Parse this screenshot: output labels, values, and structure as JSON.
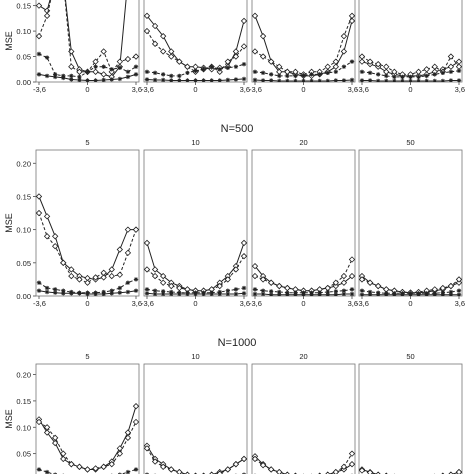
{
  "ylabel": "MSE",
  "y_ticks": [
    "0.00",
    "0.05",
    "0.10",
    "0.15",
    "0.20"
  ],
  "x_ticks": [
    "-3,6",
    "0",
    "3,6"
  ],
  "chart_data": [
    {
      "type": "line",
      "title": "",
      "ylim": [
        0,
        0.22
      ],
      "xlim": [
        -3.6,
        3.6
      ],
      "facet_labels": [
        "",
        "",
        "",
        ""
      ],
      "x": [
        -3.6,
        -3.0,
        -2.4,
        -1.8,
        -1.2,
        -0.6,
        0.0,
        0.6,
        1.2,
        1.8,
        2.4,
        3.0,
        3.6
      ],
      "panels": [
        {
          "solid_diamond": [
            0.15,
            0.14,
            0.2,
            0.2,
            0.06,
            0.025,
            0.02,
            0.02,
            0.015,
            0.01,
            0.03,
            0.2,
            0.2
          ],
          "dashed_diamond": [
            0.09,
            0.13,
            0.2,
            0.2,
            0.03,
            0.02,
            0.02,
            0.04,
            0.06,
            0.02,
            0.04,
            0.045,
            0.05
          ],
          "dashed_star": [
            0.055,
            0.048,
            0.015,
            0.012,
            0.012,
            0.01,
            0.02,
            0.03,
            0.03,
            0.025,
            0.028,
            0.02,
            0.03
          ],
          "solid_star": [
            0.015,
            0.012,
            0.01,
            0.008,
            0.005,
            0.004,
            0.003,
            0.003,
            0.004,
            0.005,
            0.006,
            0.01,
            0.015
          ]
        },
        {
          "solid_diamond": [
            0.13,
            0.11,
            0.09,
            0.06,
            0.04,
            0.03,
            0.03,
            0.028,
            0.025,
            0.028,
            0.03,
            0.06,
            0.12
          ],
          "dashed_diamond": [
            0.1,
            0.075,
            0.06,
            0.05,
            0.04,
            0.03,
            0.02,
            0.025,
            0.03,
            0.02,
            0.04,
            0.05,
            0.07
          ],
          "dashed_star": [
            0.02,
            0.018,
            0.015,
            0.012,
            0.012,
            0.018,
            0.022,
            0.025,
            0.03,
            0.025,
            0.028,
            0.03,
            0.035
          ],
          "solid_star": [
            0.005,
            0.004,
            0.004,
            0.003,
            0.003,
            0.003,
            0.003,
            0.003,
            0.003,
            0.003,
            0.004,
            0.005,
            0.006
          ]
        },
        {
          "solid_diamond": [
            0.13,
            0.09,
            0.04,
            0.02,
            0.02,
            0.015,
            0.012,
            0.012,
            0.015,
            0.02,
            0.03,
            0.06,
            0.12
          ],
          "dashed_diamond": [
            0.06,
            0.05,
            0.04,
            0.03,
            0.02,
            0.02,
            0.015,
            0.02,
            0.02,
            0.03,
            0.04,
            0.09,
            0.13
          ],
          "dashed_star": [
            0.02,
            0.018,
            0.015,
            0.012,
            0.012,
            0.012,
            0.013,
            0.015,
            0.015,
            0.018,
            0.02,
            0.03,
            0.04
          ],
          "solid_star": [
            0.004,
            0.003,
            0.003,
            0.002,
            0.002,
            0.002,
            0.002,
            0.002,
            0.002,
            0.002,
            0.003,
            0.003,
            0.004
          ]
        },
        {
          "solid_diamond": [
            0.04,
            0.035,
            0.03,
            0.02,
            0.015,
            0.012,
            0.012,
            0.012,
            0.015,
            0.02,
            0.025,
            0.03,
            0.04
          ],
          "dashed_diamond": [
            0.05,
            0.04,
            0.035,
            0.03,
            0.02,
            0.015,
            0.015,
            0.02,
            0.025,
            0.03,
            0.02,
            0.05,
            0.03
          ],
          "dashed_star": [
            0.02,
            0.018,
            0.015,
            0.012,
            0.01,
            0.01,
            0.01,
            0.01,
            0.012,
            0.015,
            0.018,
            0.02,
            0.022
          ],
          "solid_star": [
            0.003,
            0.003,
            0.002,
            0.002,
            0.002,
            0.002,
            0.002,
            0.002,
            0.002,
            0.002,
            0.002,
            0.003,
            0.003
          ]
        }
      ]
    },
    {
      "type": "line",
      "title": "N=500",
      "ylim": [
        0,
        0.22
      ],
      "xlim": [
        -3.6,
        3.6
      ],
      "facet_labels": [
        "5",
        "10",
        "20",
        "50"
      ],
      "x": [
        -3.6,
        -3.0,
        -2.4,
        -1.8,
        -1.2,
        -0.6,
        0.0,
        0.6,
        1.2,
        1.8,
        2.4,
        3.0,
        3.6
      ],
      "panels": [
        {
          "solid_diamond": [
            0.15,
            0.12,
            0.09,
            0.05,
            0.04,
            0.03,
            0.027,
            0.025,
            0.028,
            0.04,
            0.07,
            0.1,
            0.1
          ],
          "dashed_diamond": [
            0.125,
            0.09,
            0.075,
            0.05,
            0.03,
            0.025,
            0.02,
            0.028,
            0.035,
            0.03,
            0.032,
            0.065,
            0.1
          ],
          "dashed_star": [
            0.02,
            0.012,
            0.01,
            0.008,
            0.006,
            0.005,
            0.005,
            0.005,
            0.006,
            0.008,
            0.012,
            0.02,
            0.025
          ],
          "solid_star": [
            0.008,
            0.006,
            0.005,
            0.004,
            0.004,
            0.004,
            0.003,
            0.003,
            0.003,
            0.004,
            0.005,
            0.006,
            0.008
          ]
        },
        {
          "solid_diamond": [
            0.08,
            0.04,
            0.03,
            0.02,
            0.015,
            0.01,
            0.008,
            0.008,
            0.01,
            0.02,
            0.03,
            0.045,
            0.08
          ],
          "dashed_diamond": [
            0.04,
            0.03,
            0.02,
            0.015,
            0.012,
            0.01,
            0.008,
            0.008,
            0.01,
            0.015,
            0.025,
            0.04,
            0.06
          ],
          "dashed_star": [
            0.01,
            0.008,
            0.007,
            0.006,
            0.005,
            0.005,
            0.005,
            0.005,
            0.005,
            0.006,
            0.008,
            0.01,
            0.012
          ],
          "solid_star": [
            0.004,
            0.003,
            0.003,
            0.003,
            0.003,
            0.003,
            0.003,
            0.003,
            0.003,
            0.003,
            0.003,
            0.003,
            0.004
          ]
        },
        {
          "solid_diamond": [
            0.045,
            0.03,
            0.02,
            0.015,
            0.012,
            0.01,
            0.008,
            0.008,
            0.01,
            0.012,
            0.015,
            0.02,
            0.03
          ],
          "dashed_diamond": [
            0.03,
            0.025,
            0.02,
            0.015,
            0.012,
            0.01,
            0.008,
            0.008,
            0.01,
            0.012,
            0.02,
            0.03,
            0.055
          ],
          "dashed_star": [
            0.01,
            0.008,
            0.007,
            0.006,
            0.005,
            0.005,
            0.005,
            0.005,
            0.005,
            0.006,
            0.007,
            0.008,
            0.01
          ],
          "solid_star": [
            0.003,
            0.003,
            0.002,
            0.002,
            0.002,
            0.002,
            0.002,
            0.002,
            0.002,
            0.002,
            0.002,
            0.003,
            0.003
          ]
        },
        {
          "solid_diamond": [
            0.03,
            0.02,
            0.015,
            0.01,
            0.008,
            0.006,
            0.005,
            0.005,
            0.006,
            0.008,
            0.01,
            0.015,
            0.02
          ],
          "dashed_diamond": [
            0.025,
            0.02,
            0.015,
            0.01,
            0.008,
            0.006,
            0.005,
            0.006,
            0.008,
            0.01,
            0.012,
            0.015,
            0.025
          ],
          "dashed_star": [
            0.008,
            0.006,
            0.005,
            0.004,
            0.004,
            0.004,
            0.004,
            0.004,
            0.004,
            0.004,
            0.005,
            0.006,
            0.008
          ],
          "solid_star": [
            0.002,
            0.002,
            0.002,
            0.002,
            0.002,
            0.002,
            0.002,
            0.002,
            0.002,
            0.002,
            0.002,
            0.002,
            0.002
          ]
        }
      ]
    },
    {
      "type": "line",
      "title": "N=1000",
      "ylim": [
        0,
        0.22
      ],
      "xlim": [
        -3.6,
        3.6
      ],
      "facet_labels": [
        "5",
        "10",
        "20",
        "50"
      ],
      "x": [
        -3.6,
        -3.0,
        -2.4,
        -1.8,
        -1.2,
        -0.6,
        0.0,
        0.6,
        1.2,
        1.8,
        2.4,
        3.0,
        3.6
      ],
      "panels": [
        {
          "solid_diamond": [
            0.115,
            0.09,
            0.07,
            0.04,
            0.03,
            0.025,
            0.02,
            0.02,
            0.025,
            0.035,
            0.06,
            0.09,
            0.14
          ],
          "dashed_diamond": [
            0.11,
            0.1,
            0.08,
            0.05,
            0.03,
            0.025,
            0.02,
            0.022,
            0.025,
            0.03,
            0.05,
            0.08,
            0.11
          ],
          "dashed_star": [
            0.02,
            0.015,
            0.01,
            0.008,
            0.006,
            0.005,
            0.005,
            0.005,
            0.006,
            0.008,
            0.01,
            0.015,
            0.02
          ],
          "solid_star": [
            0.006,
            0.005,
            0.004,
            0.004,
            0.003,
            0.003,
            0.003,
            0.003,
            0.003,
            0.004,
            0.004,
            0.005,
            0.006
          ]
        },
        {
          "solid_diamond": [
            0.065,
            0.04,
            0.03,
            0.02,
            0.015,
            0.01,
            0.008,
            0.008,
            0.01,
            0.015,
            0.02,
            0.03,
            0.04
          ],
          "dashed_diamond": [
            0.06,
            0.035,
            0.025,
            0.02,
            0.015,
            0.01,
            0.008,
            0.008,
            0.01,
            0.012,
            0.02,
            0.03,
            0.04
          ],
          "dashed_star": [
            0.01,
            0.008,
            0.006,
            0.005,
            0.005,
            0.004,
            0.004,
            0.004,
            0.005,
            0.005,
            0.006,
            0.008,
            0.01
          ],
          "solid_star": [
            0.003,
            0.003,
            0.002,
            0.002,
            0.002,
            0.002,
            0.002,
            0.002,
            0.002,
            0.002,
            0.002,
            0.003,
            0.003
          ]
        },
        {
          "solid_diamond": [
            0.045,
            0.03,
            0.02,
            0.015,
            0.01,
            0.008,
            0.006,
            0.006,
            0.008,
            0.01,
            0.015,
            0.02,
            0.03
          ],
          "dashed_diamond": [
            0.04,
            0.028,
            0.02,
            0.015,
            0.01,
            0.008,
            0.006,
            0.006,
            0.008,
            0.01,
            0.015,
            0.025,
            0.05
          ],
          "dashed_star": [
            0.008,
            0.006,
            0.005,
            0.004,
            0.004,
            0.004,
            0.004,
            0.004,
            0.004,
            0.004,
            0.005,
            0.006,
            0.008
          ],
          "solid_star": [
            0.002,
            0.002,
            0.002,
            0.002,
            0.002,
            0.002,
            0.002,
            0.002,
            0.002,
            0.002,
            0.002,
            0.002,
            0.002
          ]
        },
        {
          "solid_diamond": [
            0.02,
            0.015,
            0.01,
            0.008,
            0.006,
            0.005,
            0.004,
            0.004,
            0.005,
            0.006,
            0.008,
            0.01,
            0.015
          ],
          "dashed_diamond": [
            0.018,
            0.014,
            0.01,
            0.008,
            0.006,
            0.005,
            0.004,
            0.004,
            0.005,
            0.006,
            0.008,
            0.01,
            0.015
          ],
          "dashed_star": [
            0.005,
            0.004,
            0.004,
            0.003,
            0.003,
            0.003,
            0.003,
            0.003,
            0.003,
            0.003,
            0.004,
            0.004,
            0.005
          ],
          "solid_star": [
            0.002,
            0.002,
            0.002,
            0.002,
            0.002,
            0.002,
            0.002,
            0.002,
            0.002,
            0.002,
            0.002,
            0.002,
            0.002
          ]
        }
      ]
    }
  ]
}
